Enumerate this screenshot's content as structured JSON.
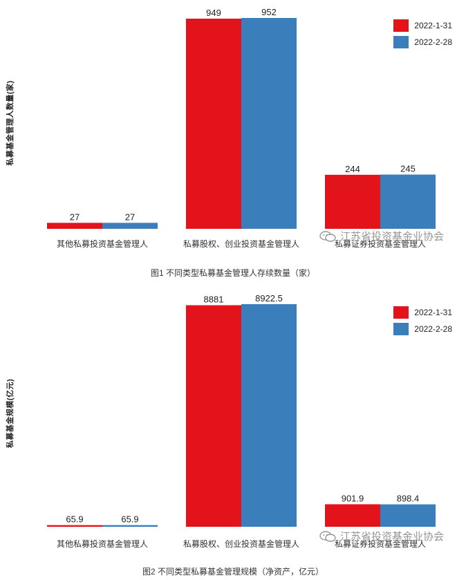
{
  "colors": {
    "series1": "#e3131b",
    "series2": "#3a7fbc"
  },
  "watermark": {
    "text": "江苏省投资基金业协会",
    "icon": "wechat-icon"
  },
  "chart_data": [
    {
      "type": "bar",
      "categories": [
        "其他私募投资基金管理人",
        "私募股权、创业投资基金管理人",
        "私募证券投资基金管理人"
      ],
      "series": [
        {
          "name": "2022-1-31",
          "values": [
            27,
            949,
            244
          ],
          "labels": [
            "27",
            "949",
            "244"
          ]
        },
        {
          "name": "2022-2-28",
          "values": [
            27,
            952,
            245
          ],
          "labels": [
            "27",
            "952",
            "245"
          ]
        }
      ],
      "ylabel": "私募基金管理人数量(家)",
      "caption": "图1  不同类型私募基金管理人存续数量（家）",
      "ylim": [
        0,
        952
      ],
      "legend": "top-right",
      "grid": false
    },
    {
      "type": "bar",
      "categories": [
        "其他私募投资基金管理人",
        "私募股权、创业投资基金管理人",
        "私募证券投资基金管理人"
      ],
      "series": [
        {
          "name": "2022-1-31",
          "values": [
            65.9,
            8881,
            901.9
          ],
          "labels": [
            "65.9",
            "8881",
            "901.9"
          ]
        },
        {
          "name": "2022-2-28",
          "values": [
            65.9,
            8922.5,
            898.4
          ],
          "labels": [
            "65.9",
            "8922.5",
            "898.4"
          ]
        }
      ],
      "ylabel": "私募基金规模(亿元)",
      "caption": "图2  不同类型私募基金管理规模（净资产，亿元）",
      "ylim": [
        0,
        8922.5
      ],
      "legend": "top-right",
      "grid": false
    }
  ]
}
